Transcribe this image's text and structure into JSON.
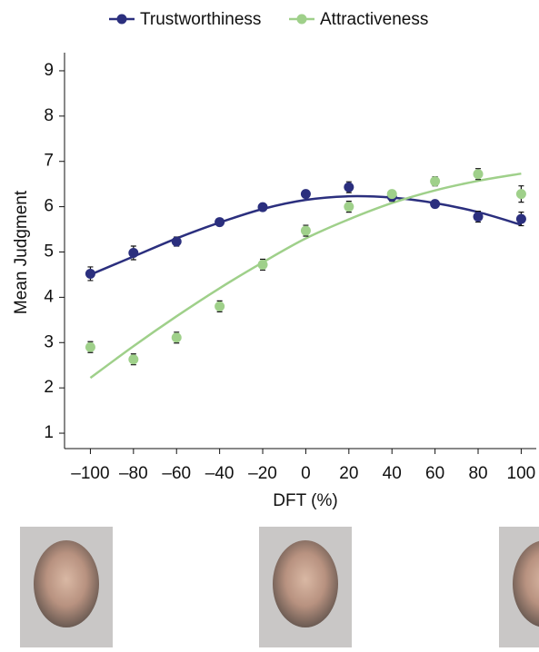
{
  "chart_data": {
    "type": "scatter",
    "x_label": "DFT (%)",
    "y_label": "Mean Judgment",
    "x": [
      -100,
      -80,
      -60,
      -40,
      -20,
      0,
      20,
      40,
      60,
      80,
      100
    ],
    "xlim": [
      -112,
      107
    ],
    "ylim": [
      0.66,
      9.4
    ],
    "xticks": [
      {
        "value": -100,
        "label": "–100"
      },
      {
        "value": -80,
        "label": "–80"
      },
      {
        "value": -60,
        "label": "–60"
      },
      {
        "value": -40,
        "label": "–40"
      },
      {
        "value": -20,
        "label": "–20"
      },
      0,
      20,
      40,
      60,
      80,
      100
    ],
    "yticks": [
      1,
      2,
      3,
      4,
      5,
      6,
      7,
      8,
      9
    ],
    "series": [
      {
        "name": "Trustworthiness",
        "color": "#2b2f7e",
        "values": [
          4.52,
          4.98,
          5.23,
          5.66,
          5.99,
          6.28,
          6.43,
          6.22,
          6.06,
          5.78,
          5.73
        ],
        "errors": [
          0.15,
          0.15,
          0.1,
          0.08,
          0.06,
          0.08,
          0.12,
          0.1,
          0.08,
          0.12,
          0.15
        ],
        "fit_values": [
          4.5,
          4.9,
          5.3,
          5.65,
          5.95,
          6.15,
          6.23,
          6.2,
          6.08,
          5.88,
          5.6
        ]
      },
      {
        "name": "Attractiveness",
        "color": "#9fd08a",
        "values": [
          2.9,
          2.63,
          3.11,
          3.8,
          4.72,
          5.47,
          6.0,
          6.28,
          6.56,
          6.72,
          6.28
        ],
        "errors": [
          0.12,
          0.12,
          0.12,
          0.12,
          0.12,
          0.12,
          0.12,
          0.08,
          0.1,
          0.12,
          0.18
        ],
        "fit_values": [
          2.22,
          2.92,
          3.58,
          4.2,
          4.77,
          5.3,
          5.72,
          6.08,
          6.36,
          6.57,
          6.73
        ]
      }
    ]
  }
}
